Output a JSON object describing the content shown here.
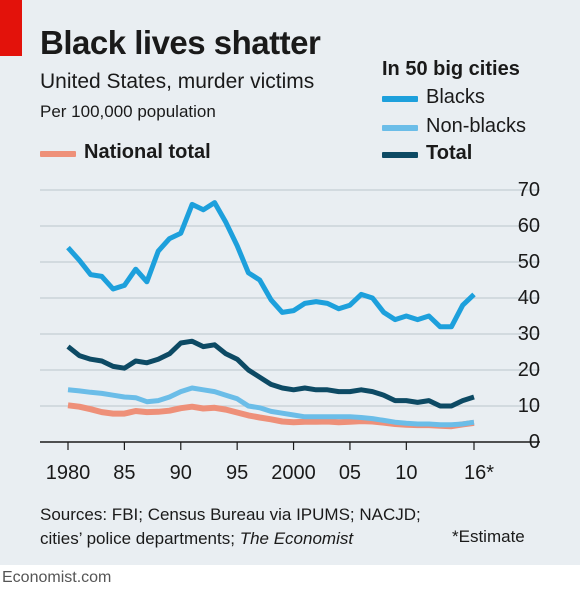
{
  "title": "Black lives shatter",
  "subtitle": "United States, murder victims",
  "unit": "Per 100,000 population",
  "legend": {
    "group_heading": "In 50 big cities",
    "items": [
      {
        "label": "Blacks",
        "color": "#1da0dc"
      },
      {
        "label": "Non-blacks",
        "color": "#6bbde8"
      },
      {
        "label": "Total",
        "color": "#0d4a64"
      },
      {
        "label": "National total",
        "color": "#ee9079"
      }
    ]
  },
  "sources": {
    "prefix": "Sources: FBI; Census Bureau via IPUMS; NACJD; cities’ police departments; ",
    "italic": "The Economist"
  },
  "estimate_note": "*Estimate",
  "footer": "Economist.com",
  "chart_data": {
    "type": "line",
    "x": [
      1980,
      1981,
      1982,
      1983,
      1984,
      1985,
      1986,
      1987,
      1988,
      1989,
      1990,
      1991,
      1992,
      1993,
      1994,
      1995,
      1996,
      1997,
      1998,
      1999,
      2000,
      2001,
      2002,
      2003,
      2004,
      2005,
      2006,
      2007,
      2008,
      2009,
      2010,
      2011,
      2012,
      2013,
      2014,
      2015,
      2016
    ],
    "x_ticks": [
      1980,
      1985,
      1990,
      1995,
      2000,
      2005,
      2010,
      2016
    ],
    "x_tick_labels": [
      "1980",
      "85",
      "90",
      "95",
      "2000",
      "05",
      "10",
      "16*"
    ],
    "y_ticks": [
      0,
      10,
      20,
      30,
      40,
      50,
      60,
      70
    ],
    "ylim": [
      0,
      70
    ],
    "grid": true,
    "series": [
      {
        "name": "Blacks",
        "color": "#1da0dc",
        "width": 5,
        "values": [
          54,
          50.5,
          46.5,
          46,
          42.5,
          43.5,
          48,
          44.5,
          53,
          56.5,
          58,
          66,
          64.5,
          66.5,
          61,
          54.5,
          47,
          45,
          39.5,
          36,
          36.5,
          38.5,
          39,
          38.5,
          37,
          38,
          41,
          40,
          36,
          34,
          35,
          34,
          35,
          32,
          32,
          38,
          41
        ]
      },
      {
        "name": "Non-blacks",
        "color": "#6bbde8",
        "width": 5,
        "values": [
          14.5,
          14.2,
          13.8,
          13.5,
          13,
          12.5,
          12.3,
          11.2,
          11.5,
          12.5,
          14,
          15,
          14.5,
          14,
          13,
          12,
          10,
          9.5,
          8.5,
          8,
          7.5,
          7,
          7,
          7,
          7,
          7,
          6.8,
          6.5,
          6,
          5.5,
          5.2,
          5,
          5,
          4.8,
          4.8,
          5,
          5.5
        ]
      },
      {
        "name": "Total",
        "color": "#0d4a64",
        "width": 5,
        "values": [
          26.5,
          24,
          23,
          22.5,
          21,
          20.5,
          22.5,
          22,
          23,
          24.5,
          27.5,
          28,
          26.5,
          27,
          24.5,
          23,
          20,
          18,
          16,
          15,
          14.5,
          15,
          14.5,
          14.5,
          14,
          14,
          14.5,
          14,
          13,
          11.5,
          11.5,
          11,
          11.5,
          10,
          10,
          11.5,
          12.5
        ]
      },
      {
        "name": "National total",
        "color": "#ee9079",
        "width": 6,
        "values": [
          10.2,
          9.8,
          9.1,
          8.3,
          7.9,
          7.9,
          8.6,
          8.3,
          8.4,
          8.7,
          9.4,
          9.8,
          9.3,
          9.5,
          9,
          8.2,
          7.4,
          6.8,
          6.3,
          5.7,
          5.5,
          5.6,
          5.6,
          5.7,
          5.5,
          5.6,
          5.8,
          5.7,
          5.4,
          5,
          4.8,
          4.7,
          4.7,
          4.5,
          4.4,
          4.9,
          5.3
        ]
      }
    ]
  }
}
